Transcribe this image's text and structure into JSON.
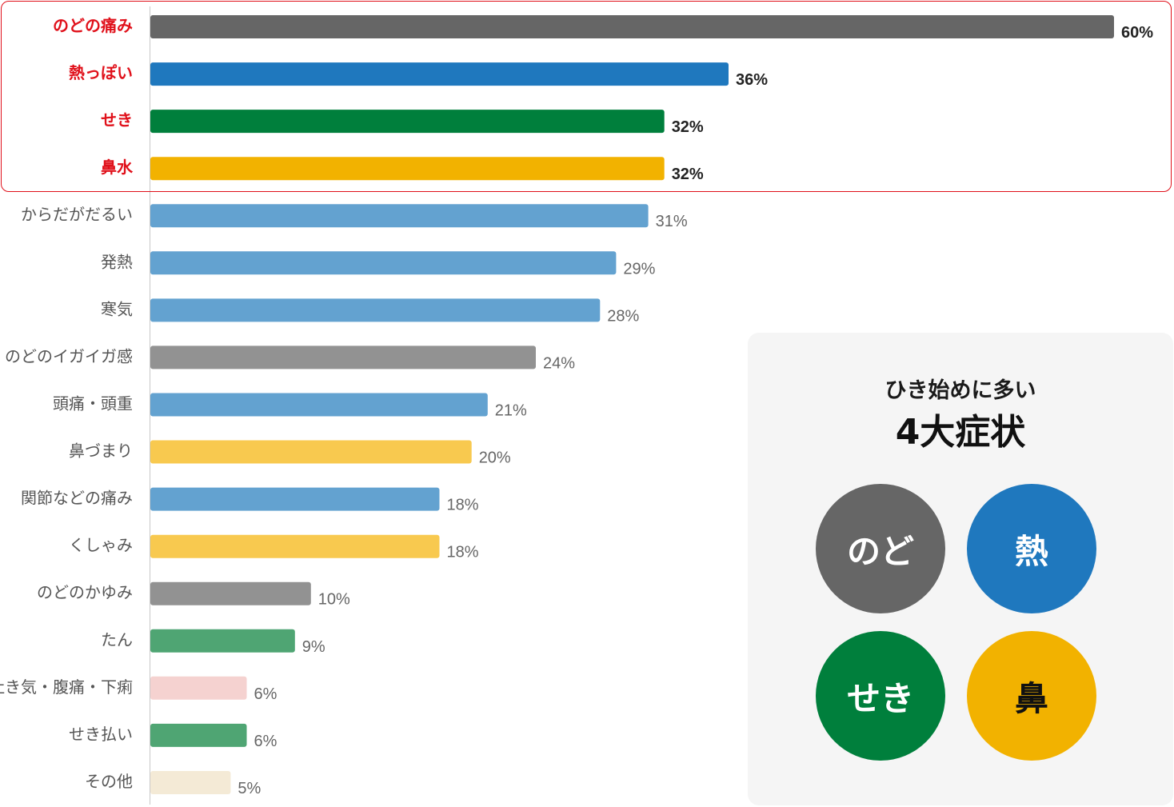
{
  "chart_data": {
    "type": "bar",
    "orientation": "horizontal",
    "categories": [
      "のどの痛み",
      "熱っぽい",
      "せき",
      "鼻水",
      "からだがだるい",
      "発熱",
      "寒気",
      "のどのイガイガ感",
      "頭痛・頭重",
      "鼻づまり",
      "関節などの痛み",
      "くしゃみ",
      "のどのかゆみ",
      "たん",
      "吐き気・腹痛・下痢",
      "せき払い",
      "その他"
    ],
    "values": [
      60,
      36,
      32,
      32,
      31,
      29,
      28,
      24,
      21,
      20,
      18,
      18,
      10,
      9,
      6,
      6,
      5
    ],
    "value_labels": [
      "60%",
      "36%",
      "32%",
      "32%",
      "31%",
      "29%",
      "28%",
      "24%",
      "21%",
      "20%",
      "18%",
      "18%",
      "10%",
      "9%",
      "6%",
      "6%",
      "5%"
    ],
    "bar_colors": [
      "#666666",
      "#1f78be",
      "#007f3c",
      "#f2b200",
      "#63a2d0",
      "#63a2d0",
      "#63a2d0",
      "#929292",
      "#63a2d0",
      "#f8c94f",
      "#63a2d0",
      "#f8c94f",
      "#929292",
      "#4fa573",
      "#f5d2d0",
      "#4fa573",
      "#f4ead6"
    ],
    "highlighted_count": 4,
    "highlight_label_color": "#e0101a",
    "xlim": [
      0,
      60
    ],
    "grid": false,
    "title": "",
    "xlabel": "",
    "ylabel": ""
  },
  "panel": {
    "subtitle": "ひき始めに多い",
    "title": "4大症状",
    "circles": [
      {
        "label": "のど",
        "color": "#666666",
        "text_color": "#ffffff"
      },
      {
        "label": "熱",
        "color": "#1f78be",
        "text_color": "#ffffff"
      },
      {
        "label": "せき",
        "color": "#007f3c",
        "text_color": "#ffffff"
      },
      {
        "label": "鼻",
        "color": "#f2b200",
        "text_color": "#111111"
      }
    ]
  }
}
